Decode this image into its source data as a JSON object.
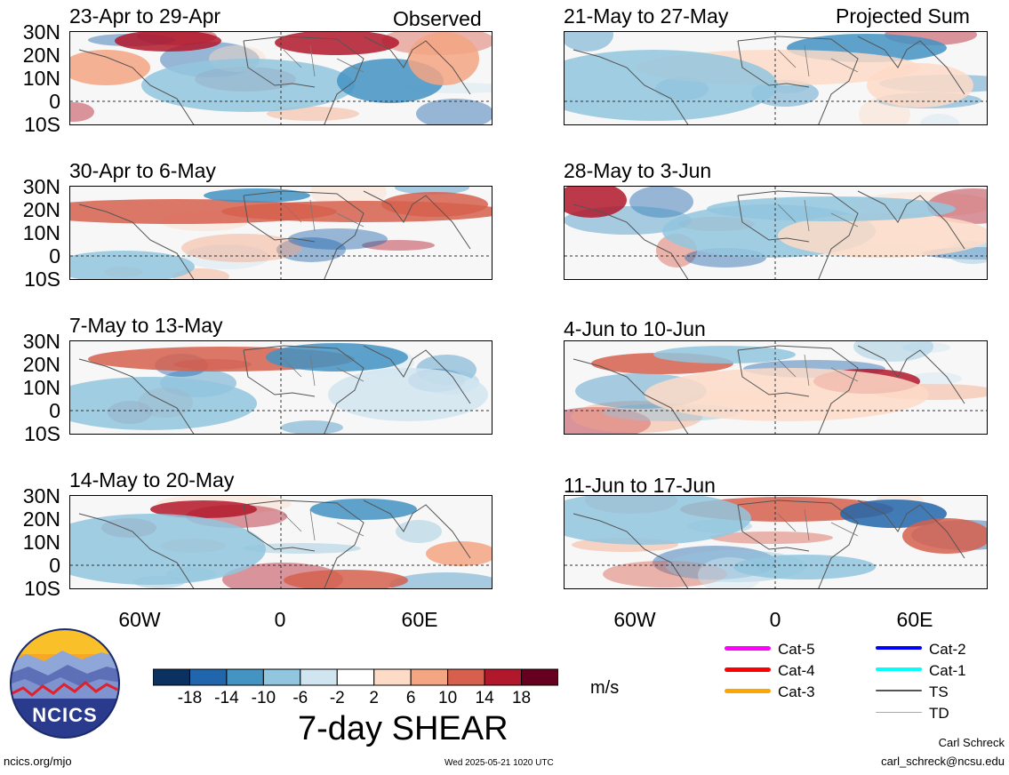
{
  "panels_left": [
    {
      "title": "23-Apr to 29-Apr",
      "tag": "Observed"
    },
    {
      "title": "30-Apr to 6-May",
      "tag": ""
    },
    {
      "title": "7-May to 13-May",
      "tag": ""
    },
    {
      "title": "14-May to 20-May",
      "tag": ""
    }
  ],
  "panels_right": [
    {
      "title": "21-May to 27-May",
      "tag": "Projected Sum"
    },
    {
      "title": "28-May to 3-Jun",
      "tag": ""
    },
    {
      "title": "4-Jun to 10-Jun",
      "tag": ""
    },
    {
      "title": "11-Jun to 17-Jun",
      "tag": ""
    }
  ],
  "lat_labels": [
    "30N",
    "20N",
    "10N",
    "0",
    "10S"
  ],
  "lon_labels": [
    "60W",
    "0",
    "60E"
  ],
  "colorbar": {
    "ticks": [
      "-18",
      "-14",
      "-10",
      "-6",
      "-2",
      "2",
      "6",
      "10",
      "14",
      "18"
    ],
    "colors": [
      "#0b3160",
      "#2166ac",
      "#4393c3",
      "#92c5de",
      "#d1e5f0",
      "#ffffff",
      "#fddbc7",
      "#f4a582",
      "#d6604d",
      "#b2182b",
      "#67001f"
    ],
    "units": "m/s",
    "title": "7-day SHEAR"
  },
  "storm_legend": [
    {
      "label": "Cat-5",
      "color": "#ff00ff",
      "weight": 5
    },
    {
      "label": "Cat-4",
      "color": "#ff0000",
      "weight": 5
    },
    {
      "label": "Cat-3",
      "color": "#ffa500",
      "weight": 5
    },
    {
      "label": "Cat-2",
      "color": "#0000ff",
      "weight": 4
    },
    {
      "label": "Cat-1",
      "color": "#00ffff",
      "weight": 4
    },
    {
      "label": "TS",
      "color": "#555555",
      "weight": 2
    },
    {
      "label": "TD",
      "color": "#aaaaaa",
      "weight": 1
    }
  ],
  "logo": {
    "text": "NCICS"
  },
  "footer": {
    "url": "ncics.org/mjo",
    "timestamp": "Wed 2025-05-21 1020 UTC",
    "author": "Carl Schreck",
    "email": "carl_schreck@ncsu.edu"
  }
}
